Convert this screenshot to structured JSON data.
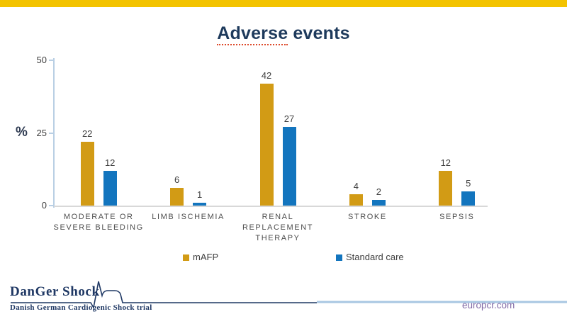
{
  "slide": {
    "title": {
      "word1": "Adverse",
      "word2": "events"
    }
  },
  "chart_data": {
    "type": "bar",
    "title": "Adverse events",
    "categories": [
      "MODERATE OR SEVERE BLEEDING",
      "LIMB ISCHEMIA",
      "RENAL REPLACEMENT THERAPY",
      "STROKE",
      "SEPSIS"
    ],
    "series": [
      {
        "name": "mAFP",
        "color": "#d29b15",
        "values": [
          22,
          6,
          42,
          4,
          12
        ]
      },
      {
        "name": "Standard care",
        "color": "#1375be",
        "values": [
          12,
          1,
          27,
          2,
          5
        ]
      }
    ],
    "xlabel": "",
    "ylabel": "%",
    "ylim": [
      0,
      50
    ],
    "yticks": [
      0,
      25,
      50
    ],
    "grid": false,
    "legend_position": "bottom"
  },
  "footer": {
    "logo_title": "DanGer Shock",
    "logo_subtitle": "Danish German Cardiogenic Shock trial",
    "website": "europcr.com"
  },
  "colors": {
    "top_strip": "#f3c300",
    "title_text": "#1e3a5c",
    "axis_blue": "#b9cfe4",
    "baseline_gray": "#d8d8d8",
    "percent_label": "#2f3b52",
    "logo_navy": "#1f3864",
    "footer_line_blue": "#a8c7e2",
    "europcr_purple": "#8169a6"
  }
}
